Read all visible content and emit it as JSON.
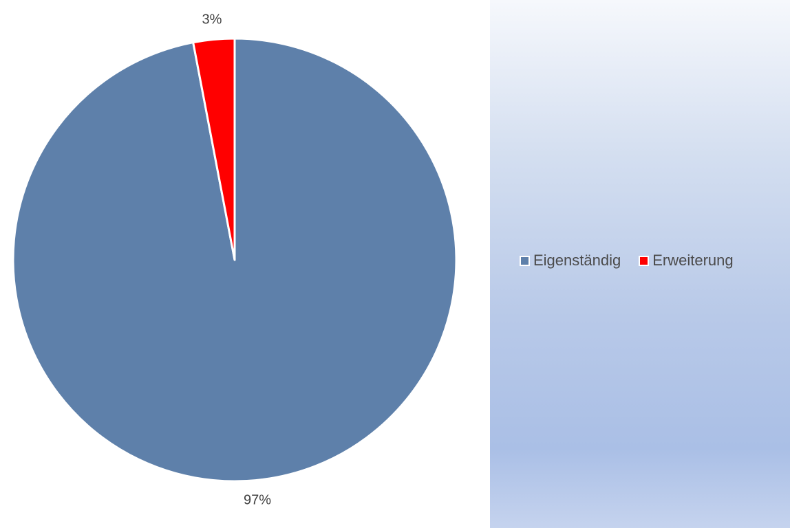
{
  "chart_data": {
    "type": "pie",
    "categories": [
      "Eigenständig",
      "Erweiterung"
    ],
    "values": [
      97,
      3
    ],
    "data_labels": [
      "97%",
      "3%"
    ],
    "colors": [
      "#5e80aa",
      "#ff0000"
    ],
    "legend_position": "right",
    "start_angle": "top, clockwise",
    "title": ""
  }
}
